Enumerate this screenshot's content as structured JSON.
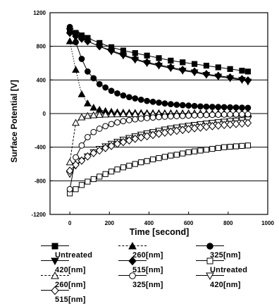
{
  "chart_data": {
    "type": "scatter",
    "title": "",
    "xlabel": "Time [second]",
    "ylabel": "Surface Potential [V]",
    "xlim": [
      -100,
      1000
    ],
    "ylim": [
      -1200,
      1200
    ],
    "xticks": [
      0,
      200,
      400,
      600,
      800,
      1000
    ],
    "yticks": [
      1200,
      800,
      400,
      0,
      -400,
      -800,
      -1200
    ],
    "xtick_labels": [
      "0",
      "200",
      "400",
      "600",
      "800",
      "1000"
    ],
    "ytick_labels": [
      "1200",
      "800",
      "400",
      "0",
      "-400",
      "-800",
      "-1200"
    ],
    "gridlines_y": [
      800,
      400,
      0,
      -400,
      -800
    ],
    "legend_position": "bottom",
    "series": [
      {
        "name": "Untreated",
        "marker": "square-filled",
        "line": "solid",
        "x": [
          0,
          30,
          60,
          90,
          150,
          210,
          270,
          330,
          390,
          450,
          510,
          570,
          630,
          690,
          750,
          810,
          870,
          900
        ],
        "y": [
          1000,
          960,
          930,
          900,
          840,
          790,
          750,
          720,
          690,
          660,
          630,
          610,
          590,
          570,
          550,
          530,
          510,
          500
        ]
      },
      {
        "name": "260[nm]",
        "marker": "triangle-up-filled",
        "line": "dotted",
        "x": [
          0,
          30,
          60,
          90,
          120,
          150,
          180,
          210,
          240,
          270,
          300,
          330,
          360,
          390,
          420,
          450,
          480,
          510,
          540,
          570,
          600,
          630,
          660,
          690,
          720,
          750,
          780,
          810,
          840,
          870,
          900
        ],
        "y": [
          860,
          520,
          230,
          120,
          70,
          45,
          30,
          22,
          16,
          12,
          10,
          8,
          7,
          6,
          5,
          5,
          4,
          4,
          3,
          3,
          3,
          3,
          2,
          2,
          2,
          2,
          2,
          2,
          2,
          2,
          2
        ]
      },
      {
        "name": "325[nm]",
        "marker": "circle-filled",
        "line": "solid",
        "x": [
          0,
          30,
          60,
          90,
          120,
          150,
          180,
          210,
          240,
          270,
          300,
          330,
          360,
          390,
          420,
          450,
          480,
          510,
          540,
          570,
          600,
          630,
          660,
          690,
          720,
          750,
          780,
          810,
          840,
          870,
          900
        ],
        "y": [
          1030,
          850,
          650,
          500,
          420,
          350,
          310,
          270,
          240,
          215,
          195,
          180,
          165,
          150,
          140,
          130,
          120,
          112,
          105,
          100,
          95,
          90,
          85,
          82,
          80,
          78,
          76,
          74,
          72,
          70,
          68
        ]
      },
      {
        "name": "420[nm]",
        "marker": "triangle-down-filled",
        "line": "solid",
        "x": [
          0,
          30,
          60,
          90,
          150,
          210,
          270,
          330,
          390,
          450,
          510,
          570,
          630,
          690,
          750,
          810,
          870,
          900
        ],
        "y": [
          980,
          940,
          900,
          860,
          800,
          740,
          690,
          640,
          600,
          570,
          540,
          510,
          490,
          460,
          440,
          420,
          400,
          380
        ]
      },
      {
        "name": "515[nm]",
        "marker": "diamond-filled",
        "line": "solid",
        "x": [
          0,
          30,
          60,
          90,
          150,
          210,
          270,
          330,
          390,
          450,
          510,
          570,
          630,
          690,
          750,
          810,
          870,
          900
        ],
        "y": [
          960,
          920,
          890,
          860,
          800,
          750,
          700,
          650,
          610,
          580,
          550,
          520,
          500,
          470,
          450,
          430,
          410,
          395
        ]
      },
      {
        "name": "Untreated",
        "marker": "square-open",
        "line": "solid",
        "x": [
          0,
          30,
          60,
          90,
          120,
          150,
          180,
          210,
          240,
          270,
          300,
          330,
          360,
          390,
          420,
          450,
          480,
          510,
          540,
          570,
          600,
          630,
          660,
          690,
          720,
          750,
          780,
          810,
          840,
          870,
          900
        ],
        "y": [
          -950,
          -900,
          -850,
          -810,
          -780,
          -750,
          -720,
          -690,
          -665,
          -640,
          -620,
          -600,
          -580,
          -565,
          -545,
          -530,
          -515,
          -500,
          -490,
          -475,
          -460,
          -450,
          -440,
          -430,
          -420,
          -410,
          -400,
          -395,
          -390,
          -385,
          -380
        ]
      },
      {
        "name": "260[nm]",
        "marker": "triangle-up-open",
        "line": "dashed",
        "x": [
          0,
          30,
          60,
          90,
          120,
          150,
          180,
          210,
          240,
          270,
          300,
          330,
          360,
          390,
          420,
          450,
          480,
          510,
          540,
          570,
          600,
          630,
          660,
          690,
          720,
          750,
          780,
          810,
          840,
          870,
          900
        ],
        "y": [
          -580,
          -110,
          -45,
          -28,
          -20,
          -15,
          -12,
          -10,
          -9,
          -8,
          -7,
          -6,
          -6,
          -5,
          -5,
          -5,
          -4,
          -4,
          -4,
          -4,
          -3,
          -3,
          -3,
          -3,
          -3,
          -3,
          -3,
          -3,
          -3,
          -3,
          -3
        ]
      },
      {
        "name": "325[nm]",
        "marker": "circle-open",
        "line": "solid",
        "x": [
          0,
          30,
          60,
          90,
          120,
          150,
          180,
          210,
          240,
          270,
          300,
          330,
          360,
          390,
          420,
          450,
          480,
          510,
          540,
          570,
          600,
          630,
          660,
          690,
          720,
          750,
          780,
          810,
          840,
          870,
          900
        ],
        "y": [
          -900,
          -520,
          -380,
          -280,
          -220,
          -180,
          -150,
          -125,
          -105,
          -90,
          -78,
          -68,
          -60,
          -53,
          -47,
          -42,
          -37,
          -33,
          -30,
          -27,
          -24,
          -21,
          -19,
          -17,
          -15,
          -13,
          -12,
          -11,
          -10,
          -9,
          -8
        ]
      },
      {
        "name": "420[nm]",
        "marker": "triangle-down-open",
        "line": "solid",
        "x": [
          0,
          30,
          60,
          90,
          120,
          150,
          180,
          210,
          240,
          270,
          300,
          330,
          360,
          390,
          420,
          450,
          480,
          510,
          540,
          570,
          600,
          630,
          660,
          690,
          720,
          750,
          780,
          810,
          840,
          870,
          900
        ],
        "y": [
          -720,
          -620,
          -560,
          -510,
          -460,
          -420,
          -390,
          -360,
          -335,
          -310,
          -290,
          -270,
          -250,
          -235,
          -220,
          -205,
          -190,
          -178,
          -165,
          -155,
          -145,
          -135,
          -126,
          -118,
          -110,
          -103,
          -96,
          -90,
          -84,
          -78,
          -70
        ]
      },
      {
        "name": "515[nm]",
        "marker": "diamond-open",
        "line": "solid",
        "x": [
          0,
          30,
          60,
          90,
          120,
          150,
          180,
          210,
          240,
          270,
          300,
          330,
          360,
          390,
          420,
          450,
          480,
          510,
          540,
          570,
          600,
          630,
          660,
          690,
          720,
          750,
          780,
          810,
          840,
          870,
          900
        ],
        "y": [
          -680,
          -610,
          -560,
          -510,
          -470,
          -440,
          -410,
          -385,
          -360,
          -340,
          -320,
          -300,
          -285,
          -270,
          -255,
          -240,
          -228,
          -216,
          -205,
          -195,
          -185,
          -175,
          -167,
          -158,
          -150,
          -143,
          -136,
          -130,
          -124,
          -118,
          -112
        ]
      }
    ]
  }
}
